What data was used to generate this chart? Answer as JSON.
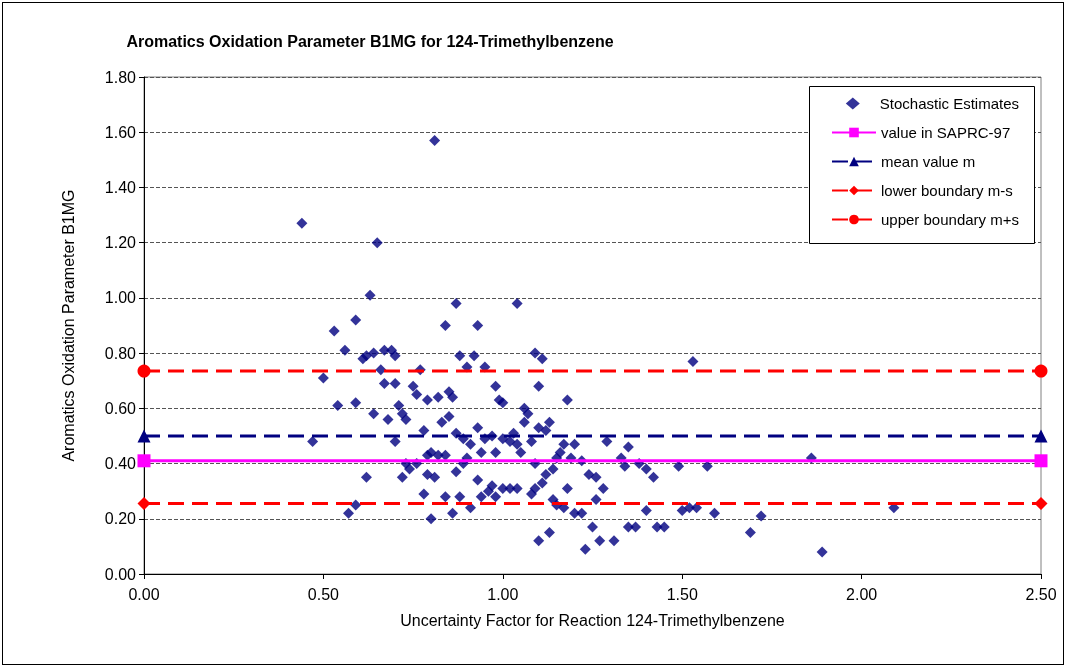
{
  "chart_data": {
    "type": "scatter",
    "title": "Aromatics Oxidation Parameter B1MG for 124-Trimethylbenzene",
    "xlabel": "Uncertainty Factor for Reaction 124-Trimethylbenzene",
    "ylabel": "Aromatics Oxidation Parameter B1MG",
    "xlim": [
      0,
      2.5
    ],
    "xticks": [
      {
        "value": 0,
        "label": "0.00"
      },
      {
        "value": 0.5,
        "label": "0.50"
      },
      {
        "value": 1,
        "label": "1.00"
      },
      {
        "value": 1.5,
        "label": "1.50"
      },
      {
        "value": 2,
        "label": "2.00"
      },
      {
        "value": 2.5,
        "label": "2.50"
      }
    ],
    "ylim": [
      0,
      1.8
    ],
    "yticks": [
      {
        "value": 0,
        "label": "0.00"
      },
      {
        "value": 0.2,
        "label": "0.20"
      },
      {
        "value": 0.4,
        "label": "0.40"
      },
      {
        "value": 0.6,
        "label": "0.60"
      },
      {
        "value": 0.8,
        "label": "0.80"
      },
      {
        "value": 1,
        "label": "1.00"
      },
      {
        "value": 1.2,
        "label": "1.20"
      },
      {
        "value": 1.4,
        "label": "1.40"
      },
      {
        "value": 1.6,
        "label": "1.60"
      },
      {
        "value": 1.8,
        "label": "1.80"
      }
    ],
    "grid": "y",
    "legend": "top right",
    "series": [
      {
        "name": "Stochastic Estimates",
        "marker": "diamond",
        "color": "#000080",
        "x": [
          0.44,
          0.81,
          0.65,
          0.63,
          0.87,
          1.04,
          0.84,
          0.93,
          0.59,
          0.53,
          0.56,
          0.62,
          0.61,
          0.67,
          0.69,
          0.7,
          0.64,
          0.77,
          0.66,
          0.5,
          0.59,
          0.54,
          0.64,
          0.62,
          0.57,
          0.59,
          0.47,
          0.67,
          0.7,
          0.75,
          0.76,
          0.73,
          0.68,
          0.71,
          0.72,
          0.7,
          0.78,
          0.79,
          0.82,
          0.85,
          0.86,
          0.83,
          0.85,
          0.88,
          0.92,
          0.9,
          0.95,
          0.98,
          0.99,
          1.0,
          0.87,
          0.89,
          0.91,
          0.93,
          0.95,
          0.97,
          0.94,
          0.98,
          1.0,
          1.02,
          1.04,
          1.03,
          1.06,
          1.07,
          1.06,
          1.09,
          1.11,
          1.1,
          1.1,
          1.12,
          1.13,
          1.08,
          1.05,
          1.09,
          1.14,
          1.15,
          1.16,
          1.17,
          1.18,
          1.2,
          1.19,
          1.22,
          1.24,
          1.26,
          1.29,
          1.33,
          1.34,
          1.35,
          1.38,
          1.4,
          1.42,
          1.49,
          1.57,
          1.53,
          1.86,
          0.73,
          0.74,
          0.72,
          0.76,
          0.79,
          0.8,
          0.82,
          0.84,
          0.81,
          0.79,
          0.78,
          0.84,
          0.87,
          0.89,
          0.9,
          0.88,
          0.91,
          0.86,
          0.8,
          0.93,
          0.94,
          0.96,
          0.97,
          0.98,
          1.0,
          1.02,
          1.04,
          1.08,
          1.09,
          1.11,
          1.12,
          1.14,
          1.15,
          1.17,
          1.18,
          1.2,
          1.13,
          1.1,
          1.22,
          1.23,
          1.25,
          1.26,
          1.27,
          1.28,
          1.31,
          1.35,
          1.37,
          1.4,
          1.43,
          1.45,
          1.5,
          1.52,
          1.59,
          1.69,
          1.72,
          1.89,
          2.09,
          1.54
        ],
        "values": [
          1.27,
          1.57,
          1.2,
          1.01,
          0.98,
          0.98,
          0.9,
          0.9,
          0.92,
          0.88,
          0.81,
          0.79,
          0.78,
          0.81,
          0.81,
          0.79,
          0.8,
          0.74,
          0.74,
          0.71,
          0.62,
          0.61,
          0.58,
          0.35,
          0.22,
          0.25,
          0.48,
          0.69,
          0.69,
          0.68,
          0.65,
          0.56,
          0.56,
          0.61,
          0.58,
          0.48,
          0.52,
          0.63,
          0.64,
          0.66,
          0.64,
          0.55,
          0.57,
          0.79,
          0.79,
          0.75,
          0.75,
          0.68,
          0.63,
          0.62,
          0.51,
          0.49,
          0.47,
          0.53,
          0.49,
          0.5,
          0.44,
          0.44,
          0.49,
          0.48,
          0.47,
          0.51,
          0.55,
          0.58,
          0.6,
          0.8,
          0.78,
          0.68,
          0.53,
          0.52,
          0.55,
          0.48,
          0.44,
          0.4,
          0.38,
          0.42,
          0.44,
          0.47,
          0.63,
          0.47,
          0.42,
          0.41,
          0.36,
          0.35,
          0.48,
          0.42,
          0.39,
          0.46,
          0.4,
          0.38,
          0.35,
          0.39,
          0.39,
          0.77,
          0.42,
          0.4,
          0.38,
          0.35,
          0.4,
          0.43,
          0.44,
          0.43,
          0.43,
          0.35,
          0.36,
          0.29,
          0.28,
          0.37,
          0.4,
          0.42,
          0.28,
          0.24,
          0.22,
          0.2,
          0.34,
          0.28,
          0.3,
          0.32,
          0.28,
          0.31,
          0.31,
          0.31,
          0.29,
          0.31,
          0.33,
          0.36,
          0.27,
          0.25,
          0.24,
          0.31,
          0.22,
          0.15,
          0.12,
          0.22,
          0.09,
          0.17,
          0.27,
          0.12,
          0.31,
          0.12,
          0.17,
          0.17,
          0.23,
          0.17,
          0.17,
          0.23,
          0.24,
          0.22,
          0.15,
          0.21,
          0.08,
          0.24,
          0.24
        ]
      },
      {
        "name": "value in SAPRC-97",
        "type": "line",
        "marker": "square",
        "line_style": "solid",
        "color": "#ff00ff",
        "x": [
          0,
          2.5
        ],
        "values": [
          0.41,
          0.41
        ]
      },
      {
        "name": "mean value m",
        "type": "line",
        "marker": "triangle",
        "line_style": "dashed",
        "color": "#000080",
        "x": [
          0,
          2.5
        ],
        "values": [
          0.5,
          0.5
        ]
      },
      {
        "name": "lower boundary m-s",
        "type": "line",
        "marker": "diamond",
        "line_style": "dashed",
        "color": "#ff0000",
        "x": [
          0,
          2.5
        ],
        "values": [
          0.255,
          0.255
        ]
      },
      {
        "name": "upper boundary m+s",
        "type": "line",
        "marker": "circle",
        "line_style": "dashed",
        "color": "#ff0000",
        "x": [
          0,
          2.5
        ],
        "values": [
          0.735,
          0.735
        ]
      }
    ]
  }
}
